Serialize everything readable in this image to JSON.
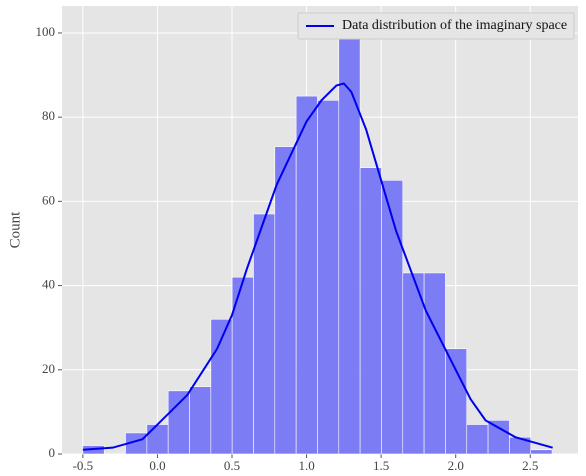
{
  "chart_data": {
    "type": "histogram",
    "bins": [
      -0.5,
      -0.357,
      -0.214,
      -0.071,
      0.072,
      0.215,
      0.358,
      0.501,
      0.644,
      0.787,
      0.93,
      1.073,
      1.216,
      1.359,
      1.502,
      1.645,
      1.788,
      1.931,
      2.074,
      2.217,
      2.36,
      2.503,
      2.646
    ],
    "values": [
      2,
      0,
      5,
      7,
      15,
      16,
      32,
      42,
      57,
      73,
      85,
      84,
      101,
      68,
      65,
      43,
      43,
      25,
      7,
      8,
      4,
      1
    ],
    "color": "#7676f4",
    "series": [
      {
        "name": "Data distribution of the imaginary space",
        "color": "#0000ee",
        "x": [
          -0.5,
          -0.3,
          -0.1,
          0.0,
          0.2,
          0.4,
          0.5,
          0.6,
          0.8,
          1.0,
          1.1,
          1.2,
          1.25,
          1.3,
          1.4,
          1.5,
          1.6,
          1.8,
          2.0,
          2.1,
          2.2,
          2.4,
          2.65
        ],
        "values": [
          1,
          1.5,
          3.5,
          7,
          14,
          25,
          33,
          44,
          64,
          79,
          84,
          87.5,
          88,
          86,
          77,
          65,
          53,
          34,
          20,
          13,
          8,
          4,
          1.5
        ]
      }
    ],
    "ylabel": "Count",
    "xlim": [
      -0.64,
      2.82
    ],
    "ylim": [
      0,
      106.4
    ],
    "xticks": [
      -0.5,
      {
        "value": 0,
        "label": "0.0"
      },
      0.5,
      {
        "value": 1,
        "label": "1.0"
      },
      1.5,
      {
        "value": 2,
        "label": "2.0"
      },
      2.5
    ],
    "yticks": [
      0,
      20,
      40,
      60,
      80,
      100
    ],
    "grid": true,
    "legend": "upper right"
  }
}
